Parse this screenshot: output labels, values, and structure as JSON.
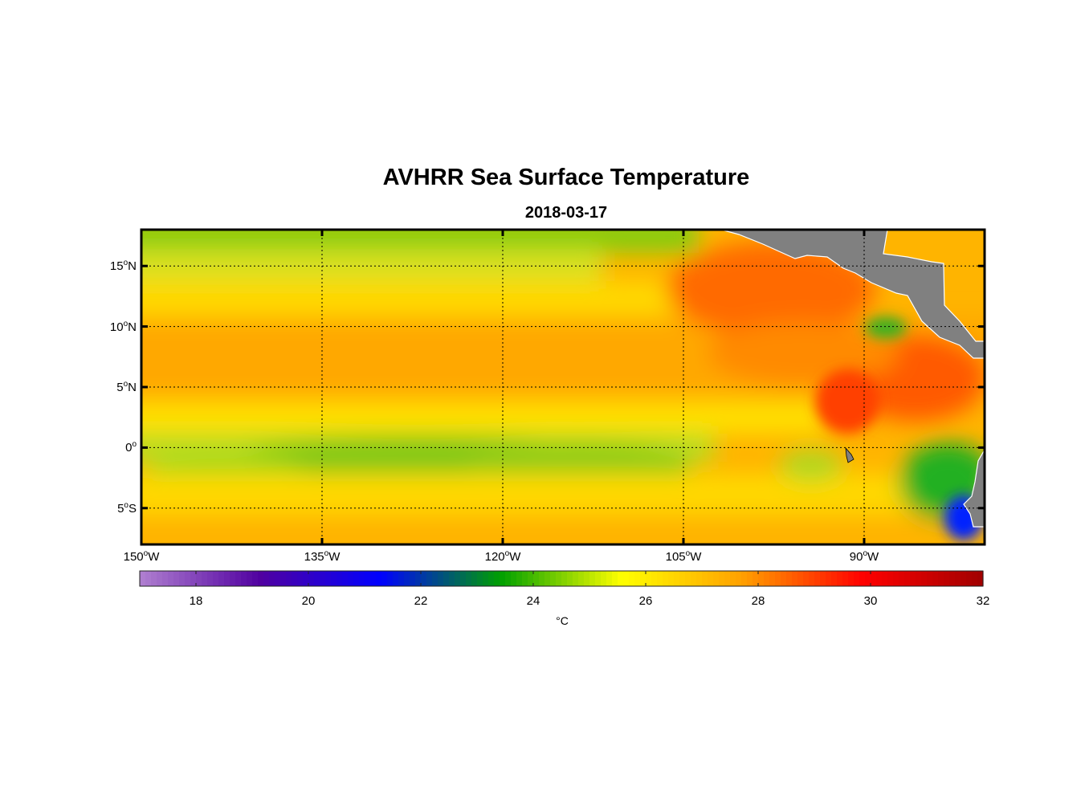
{
  "title": "AVHRR Sea Surface Temperature",
  "subtitle": "2018-03-17",
  "map": {
    "lon_range": [
      -150,
      -80
    ],
    "lat_range": [
      -8,
      18
    ],
    "lat_ticks": [
      {
        "deg": "15",
        "hemi": "N",
        "lat": 15
      },
      {
        "deg": "10",
        "hemi": "N",
        "lat": 10
      },
      {
        "deg": "5",
        "hemi": "N",
        "lat": 5
      },
      {
        "deg": "0",
        "hemi": "",
        "lat": 0
      },
      {
        "deg": "5",
        "hemi": "S",
        "lat": -5
      }
    ],
    "lon_ticks": [
      {
        "deg": "150",
        "hemi": "W",
        "lon": -150
      },
      {
        "deg": "135",
        "hemi": "W",
        "lon": -135
      },
      {
        "deg": "120",
        "hemi": "W",
        "lon": -120
      },
      {
        "deg": "105",
        "hemi": "W",
        "lon": -105
      },
      {
        "deg": "90",
        "hemi": "W",
        "lon": -90
      }
    ],
    "land_color": "#808080",
    "grid_color": "#000000"
  },
  "colorbar": {
    "min": 17,
    "max": 32,
    "ticks": [
      "18",
      "20",
      "22",
      "24",
      "26",
      "28",
      "30",
      "32"
    ],
    "units": "°C",
    "colors": [
      "#b080d0",
      "#5000a0",
      "#0000ff",
      "#00a000",
      "#ffff00",
      "#ffa000",
      "#ff0000",
      "#a00000"
    ]
  }
}
